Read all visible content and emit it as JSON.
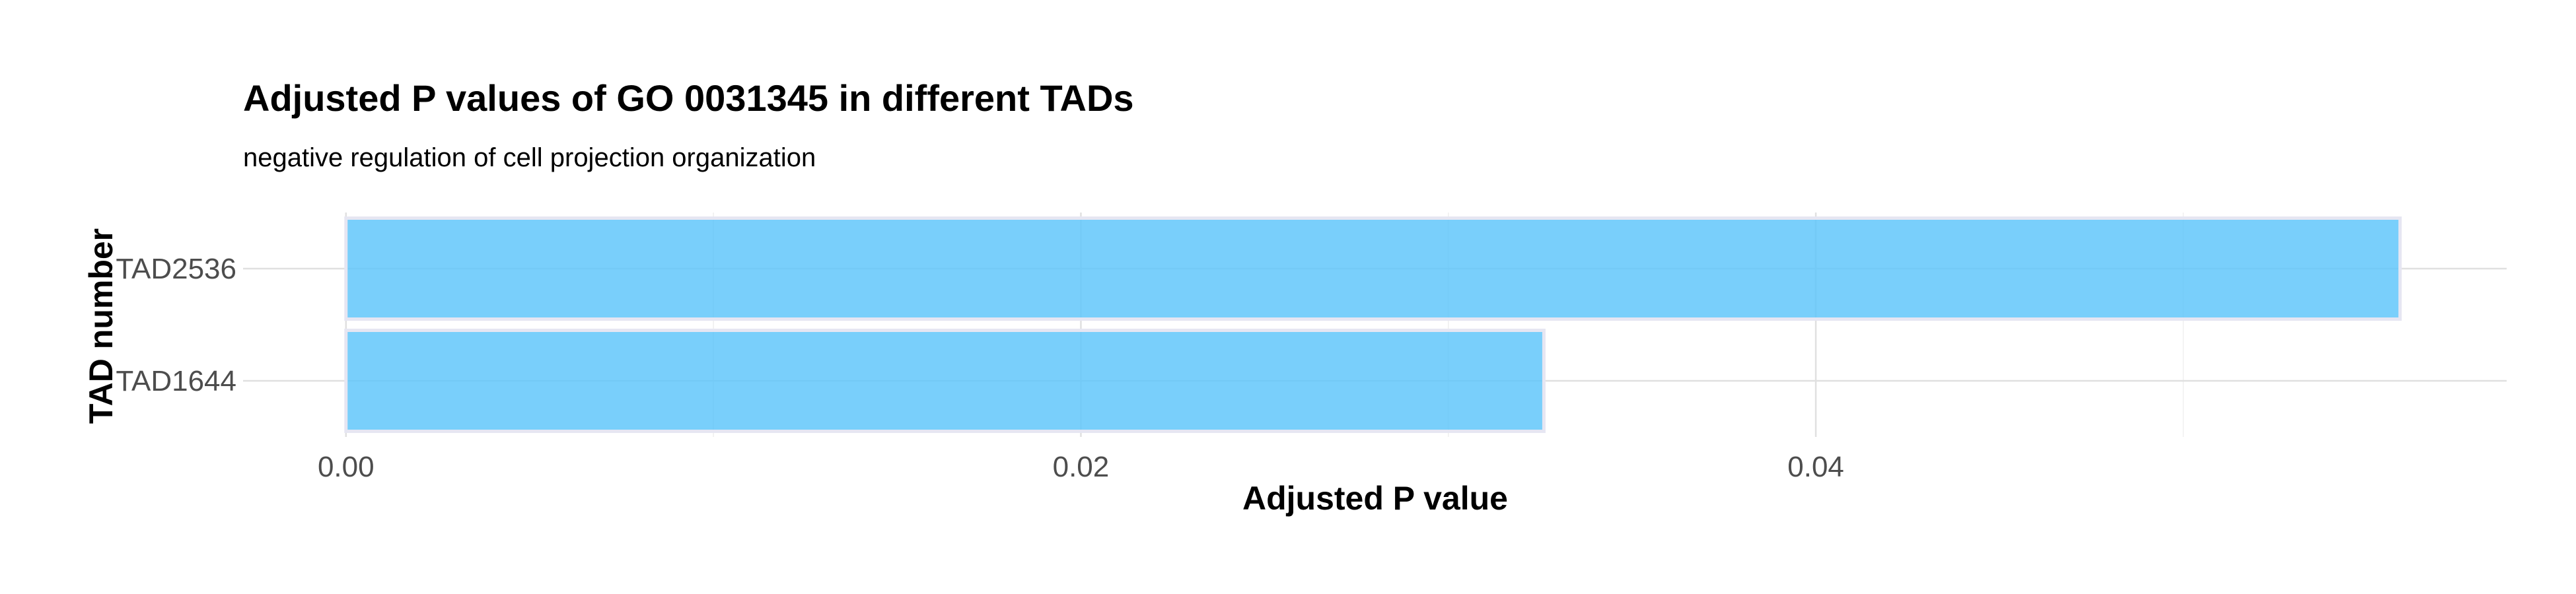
{
  "chart_data": {
    "type": "bar",
    "orientation": "horizontal",
    "title": "Adjusted P values of GO 0031345 in different TADs",
    "subtitle": "negative regulation of cell projection organization",
    "xlabel": "Adjusted P value",
    "ylabel": "TAD number",
    "categories": [
      "TAD2536",
      "TAD1644"
    ],
    "values": [
      0.0559,
      0.0326
    ],
    "xlim": [
      -0.0028,
      0.0588
    ],
    "xticks": [
      0.0,
      0.02,
      0.04
    ],
    "xtick_labels": [
      "0.00",
      "0.02",
      "0.04"
    ],
    "xminor": [
      0.01,
      0.03,
      0.05
    ],
    "grid": true,
    "bar_color": "#5bc5fa"
  }
}
